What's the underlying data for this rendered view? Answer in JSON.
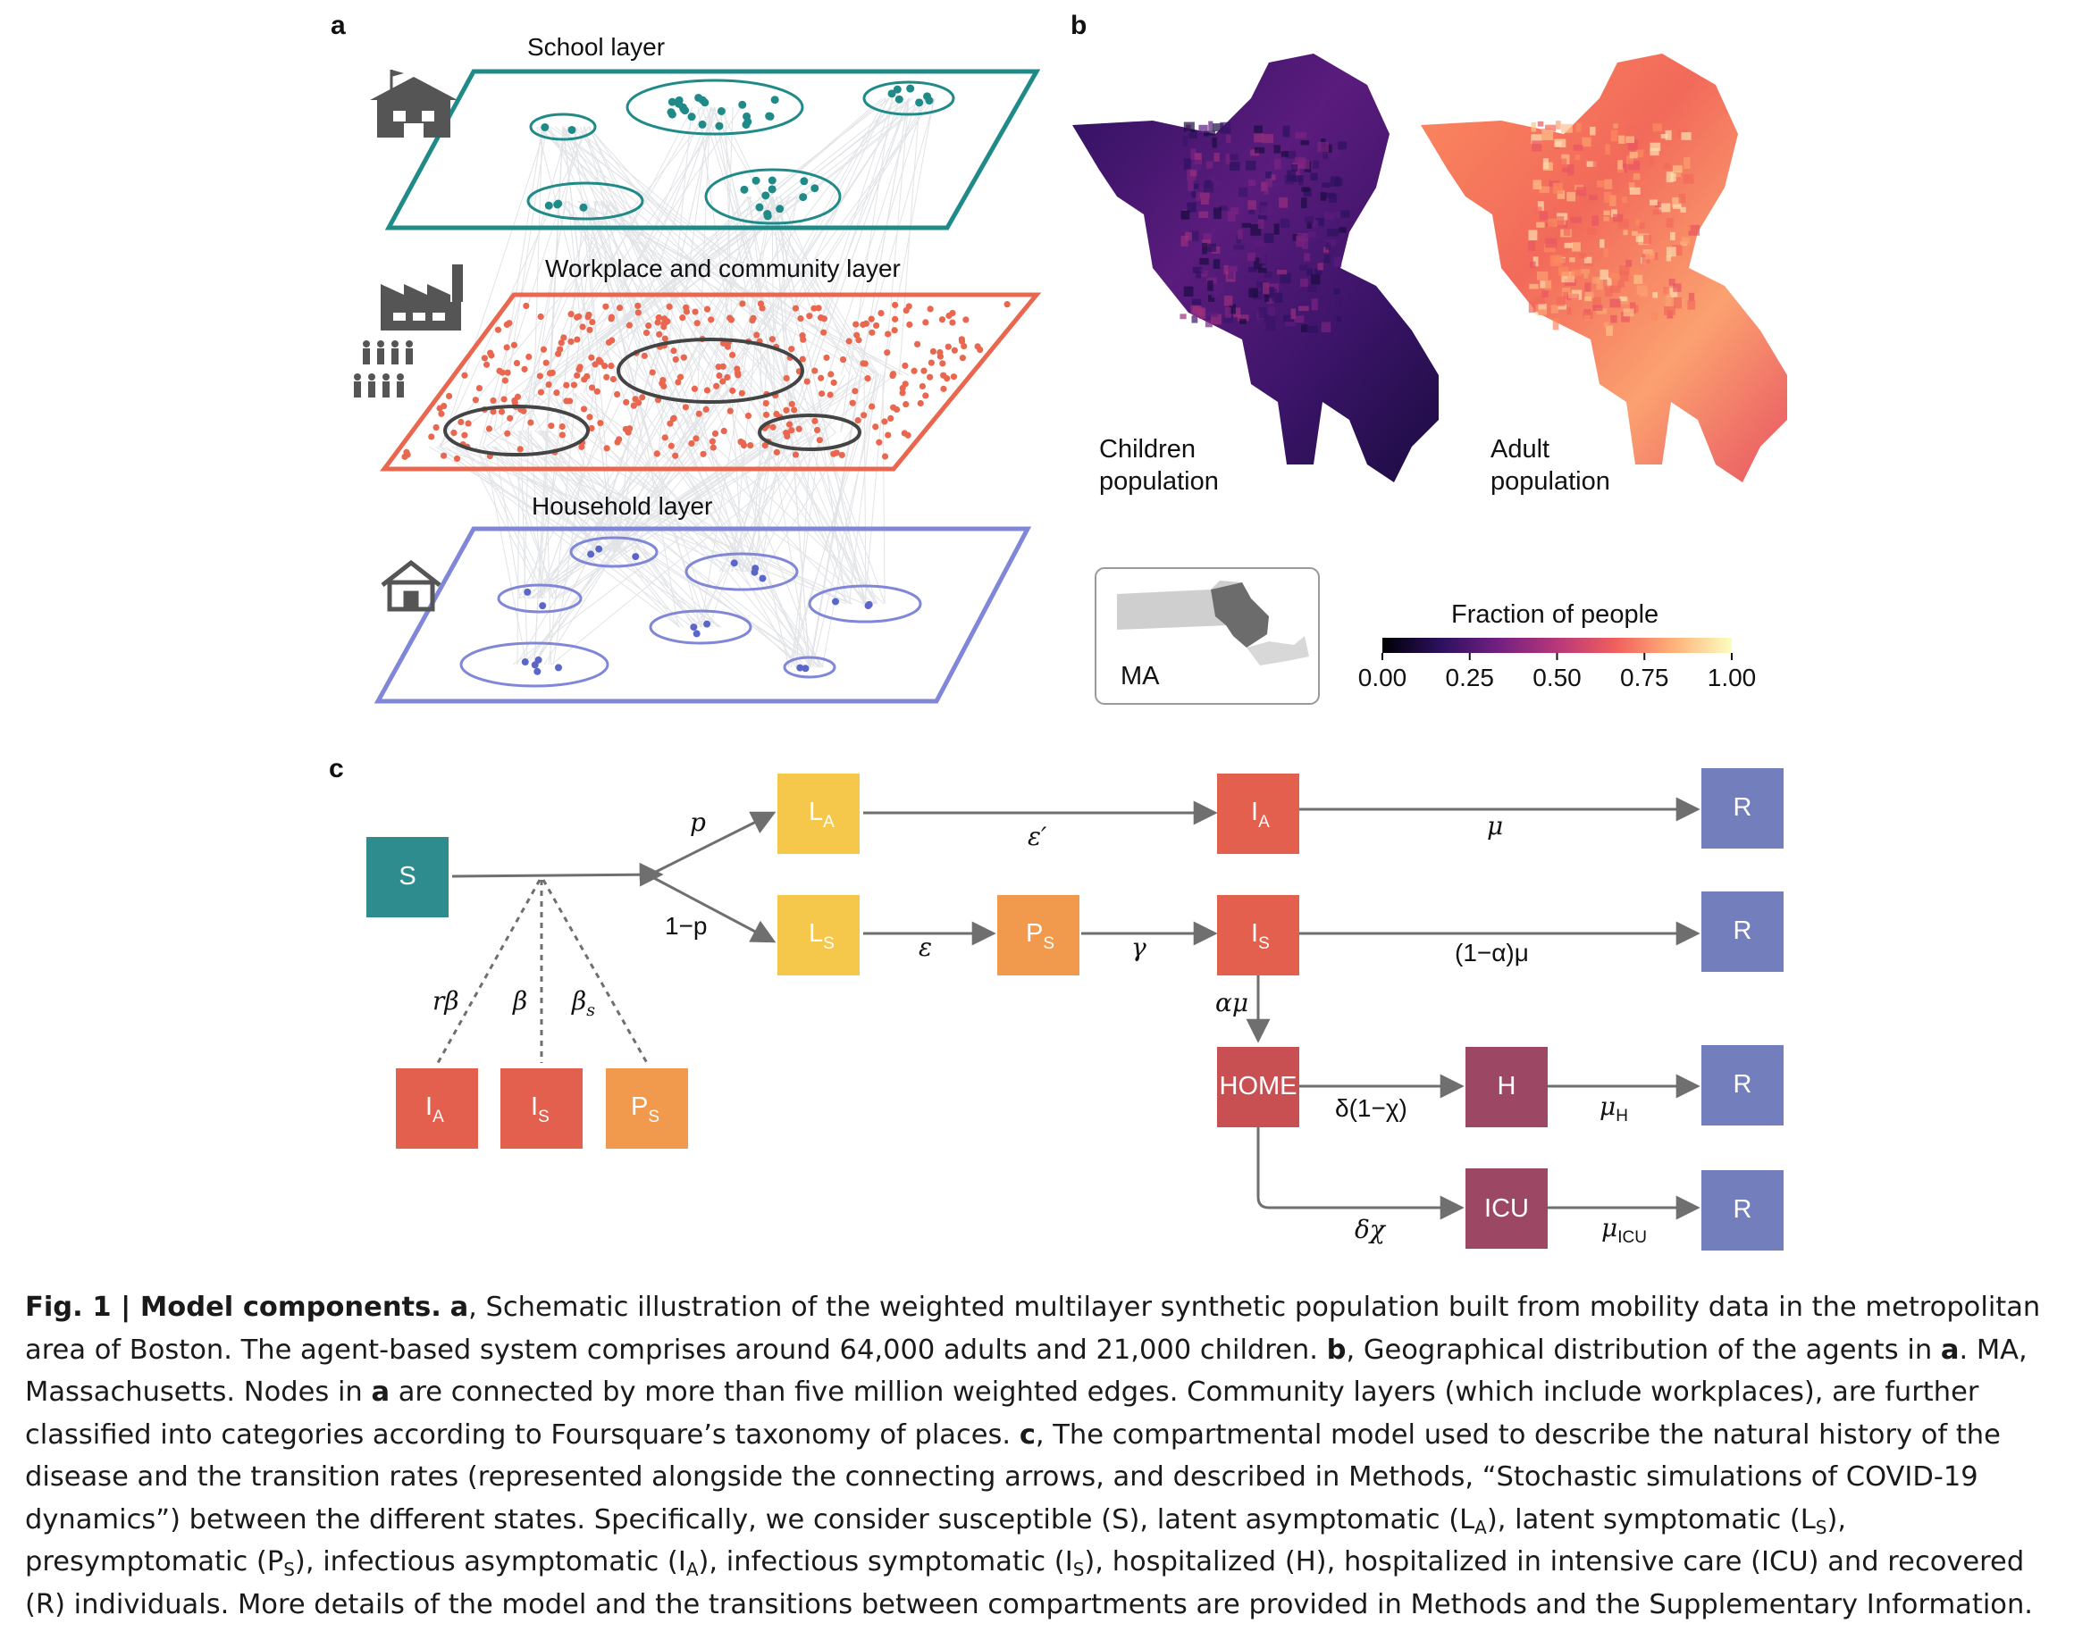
{
  "panels": {
    "a": "a",
    "b": "b",
    "c": "c"
  },
  "layers": {
    "school": "School layer",
    "workplace": "Workplace and community layer",
    "household": "Household layer"
  },
  "maps": {
    "children_line1": "Children",
    "children_line2": "population",
    "adult_line1": "Adult",
    "adult_line2": "population",
    "inset": "MA",
    "colorbar_title": "Fraction of people",
    "colorbar_ticks": [
      "0.00",
      "0.25",
      "0.50",
      "0.75",
      "1.00"
    ],
    "colorbar_colors": [
      "#000004",
      "#2c115f",
      "#721f81",
      "#b73779",
      "#f1605d",
      "#feb078",
      "#fcfdbf"
    ]
  },
  "compartments": {
    "S": "S",
    "LA_main": "L",
    "LA_sub": "A",
    "LS_main": "L",
    "LS_sub": "S",
    "PS_main": "P",
    "PS_sub": "S",
    "IA_main": "I",
    "IA_sub": "A",
    "IS_main": "I",
    "IS_sub": "S",
    "HOME": "HOME",
    "H": "H",
    "ICU": "ICU",
    "R": "R"
  },
  "rates": {
    "p": "p",
    "one_minus_p": "1−p",
    "eps_prime": "ε′",
    "mu": "μ",
    "eps": "ε",
    "gamma": "γ",
    "one_minus_alpha_mu": "(1−α)μ",
    "alpha_mu": "αμ",
    "delta_one_minus_chi": "δ(1−χ)",
    "mu_H": "μ",
    "mu_H_sub": "H",
    "delta_chi": "δχ",
    "mu_ICU": "μ",
    "mu_ICU_sub": "ICU",
    "r_beta": "rβ",
    "beta": "β",
    "beta_s": "β",
    "beta_s_sub": "s"
  },
  "colors": {
    "school": "#1f8a88",
    "workplace": "#e9674f",
    "household": "#8086d8",
    "S": "#2e8c8f",
    "latent": "#f5c84c",
    "presymp": "#f19a4d",
    "infect": "#e2604d",
    "home": "#c95052",
    "hosp": "#9c4764",
    "recovered": "#737fbd"
  },
  "caption": {
    "fig_label": "Fig. 1 | Model components.",
    "a_letter": "a",
    "a_text": ", Schematic illustration of the weighted multilayer synthetic population built from mobility data in the metropolitan area of Boston. The agent-based system comprises around 64,000 adults and 21,000 children. ",
    "b_letter": "b",
    "b_text_1": ", Geographical distribution of the agents in ",
    "b_ref": "a",
    "b_text_2": ". MA, Massachusetts. Nodes in ",
    "b_ref2": "a",
    "b_text_3": " are connected by more than five million weighted edges. Community layers (which include workplaces), are further classified into categories according to Foursquare’s taxonomy of places. ",
    "c_letter": "c",
    "c_text_1": ", The compartmental model used to describe the natural history of the disease and the transition rates (represented alongside the connecting arrows, and described in Methods, “Stochastic simulations of COVID-19 dynamics”) between the different states. Specifically, we consider susceptible (S), latent asymptomatic (L",
    "c_sub_A1": "A",
    "c_text_2": "), latent symptomatic (L",
    "c_sub_S1": "S",
    "c_text_3": "), presymptomatic (P",
    "c_sub_S2": "S",
    "c_text_4": "), infectious asymptomatic (I",
    "c_sub_A2": "A",
    "c_text_5": "), infectious symptomatic (I",
    "c_sub_S3": "S",
    "c_text_6": "), hospitalized (H), hospitalized in intensive care (ICU) and recovered (R) individuals. More details of the model and the transitions between compartments are provided in Methods and the Supplementary Information."
  }
}
